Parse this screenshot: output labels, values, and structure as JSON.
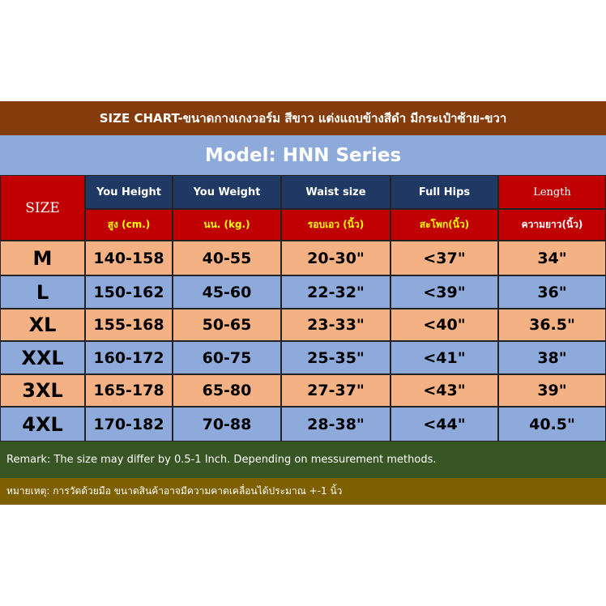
{
  "header": {
    "title": "SIZE CHART-ขนาดกางเกงวอร์ม สีขาว แต่งแถบข้างสีดำ มีกระเป๋าซ้าย-ขวา",
    "model": "Model:  HNN Series"
  },
  "table": {
    "size_label": "SIZE",
    "columns": [
      {
        "en": "You Height",
        "th": "สูง (cm.)"
      },
      {
        "en": "You Weight",
        "th": "นน. (kg.)"
      },
      {
        "en": "Waist size",
        "th": "รอบเอว (นิ้ว)"
      },
      {
        "en": "Full Hips",
        "th": "สะโพก(นิ้ว)"
      },
      {
        "en": "Length",
        "th": "ความยาว(นิ้ว)"
      }
    ],
    "rows": [
      [
        "M",
        "140-158",
        "40-55",
        "20-30\"",
        "<37\"",
        "34\""
      ],
      [
        "L",
        "150-162",
        "45-60",
        "22-32\"",
        "<39\"",
        "36\""
      ],
      [
        "XL",
        "155-168",
        "50-65",
        "23-33\"",
        "<40\"",
        "36.5\""
      ],
      [
        "XXL",
        "160-172",
        "60-75",
        "25-35\"",
        "<41\"",
        "38\""
      ],
      [
        "3XL",
        "165-178",
        "65-80",
        "27-37\"",
        "<43\"",
        "39\""
      ],
      [
        "4XL",
        "170-182",
        "70-88",
        "28-38\"",
        "<44\"",
        "40.5\""
      ]
    ]
  },
  "remark": "Remark: The size may differ by 0.5-1 Inch. Depending on messurement methods.",
  "note": "หมายเหตุ:  การวัดด้วยมือ ขนาดสินค้าอาจมีความคาดเคลื่อนได้ประมาณ +-1 นิ้ว"
}
